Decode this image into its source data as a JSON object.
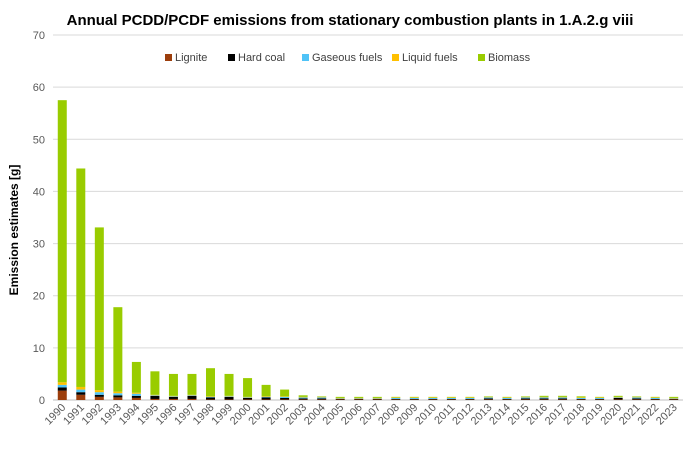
{
  "chart_data": {
    "type": "bar",
    "stacked": true,
    "title": "Annual PCDD/PCDF emissions from stationary combustion plants in 1.A.2.g viii",
    "xlabel": "",
    "ylabel": "Emission estimates [g]",
    "ylim": [
      0,
      70
    ],
    "yticks": [
      0,
      10,
      20,
      30,
      40,
      50,
      60,
      70
    ],
    "grid": true,
    "legend": "top",
    "categories": [
      "1990",
      "1991",
      "1992",
      "1993",
      "1994",
      "1995",
      "1996",
      "1997",
      "1998",
      "1999",
      "2000",
      "2001",
      "2002",
      "2003",
      "2004",
      "2005",
      "2006",
      "2007",
      "2008",
      "2009",
      "2010",
      "2011",
      "2012",
      "2013",
      "2014",
      "2015",
      "2016",
      "2017",
      "2018",
      "2019",
      "2020",
      "2021",
      "2022",
      "2023"
    ],
    "series": [
      {
        "name": "Lignite",
        "color": "#9C3E0C",
        "values": [
          1.8,
          1.0,
          0.6,
          0.5,
          0.4,
          0.2,
          0.2,
          0.2,
          0.1,
          0.1,
          0.1,
          0.1,
          0.1,
          0.1,
          0.1,
          0.1,
          0.1,
          0.1,
          0.1,
          0.1,
          0.1,
          0.1,
          0.1,
          0.1,
          0.1,
          0.1,
          0.1,
          0.1,
          0.1,
          0.1,
          0.1,
          0.1,
          0.1,
          0.1
        ]
      },
      {
        "name": "Hard coal",
        "color": "#000000",
        "values": [
          0.6,
          0.5,
          0.4,
          0.4,
          0.4,
          0.6,
          0.4,
          0.6,
          0.4,
          0.5,
          0.3,
          0.4,
          0.3,
          0.2,
          0.2,
          0.1,
          0.1,
          0.1,
          0.1,
          0.1,
          0.1,
          0.1,
          0.1,
          0.2,
          0.1,
          0.2,
          0.2,
          0.2,
          0.1,
          0.1,
          0.3,
          0.2,
          0.1,
          0.1
        ]
      },
      {
        "name": "Gaseous fuels",
        "color": "#4FC3F7",
        "values": [
          0.5,
          0.5,
          0.5,
          0.4,
          0.4,
          0.1,
          0.1,
          0.1,
          0.1,
          0.1,
          0.1,
          0.1,
          0.2,
          0.2,
          0.2,
          0.1,
          0.1,
          0.1,
          0.2,
          0.2,
          0.2,
          0.2,
          0.2,
          0.2,
          0.2,
          0.2,
          0.2,
          0.2,
          0.2,
          0.2,
          0.1,
          0.2,
          0.2,
          0.1
        ]
      },
      {
        "name": "Liquid fuels",
        "color": "#FFC000",
        "values": [
          0.5,
          0.5,
          0.4,
          0.3,
          0.2,
          0.1,
          0.1,
          0.1,
          0.1,
          0.1,
          0.1,
          0.1,
          0.1,
          0.1,
          0.1,
          0.1,
          0.1,
          0.1,
          0.1,
          0.1,
          0.1,
          0.1,
          0.1,
          0.1,
          0.1,
          0.1,
          0.1,
          0.1,
          0.1,
          0.1,
          0.1,
          0.1,
          0.1,
          0.1
        ]
      },
      {
        "name": "Biomass",
        "color": "#99CC00",
        "values": [
          54.1,
          41.9,
          31.2,
          16.2,
          5.9,
          4.5,
          4.2,
          4.0,
          5.4,
          4.2,
          3.6,
          2.2,
          1.3,
          0.3,
          0.1,
          0.2,
          0.2,
          0.2,
          0.1,
          0.1,
          0.1,
          0.1,
          0.1,
          0.1,
          0.1,
          0.1,
          0.2,
          0.2,
          0.2,
          0.1,
          0.2,
          0.1,
          0.1,
          0.2
        ]
      }
    ]
  }
}
